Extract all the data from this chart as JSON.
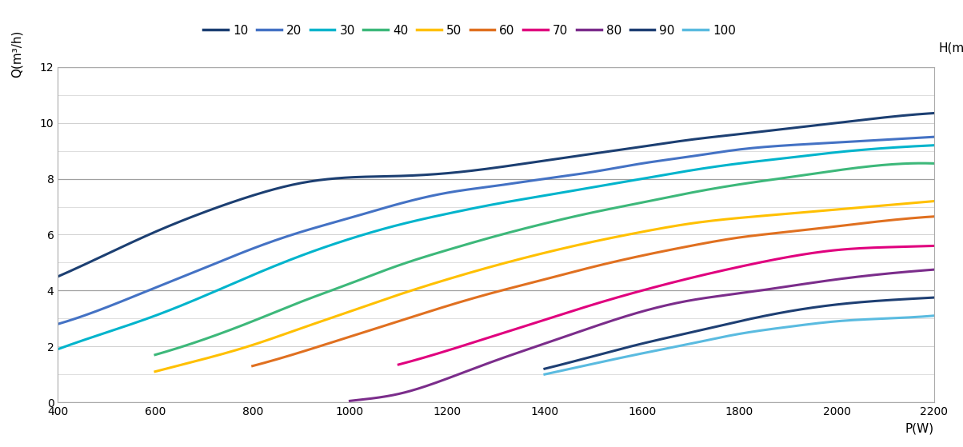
{
  "xlabel": "P(W)",
  "ylabel": "Q(m³/h)",
  "ylabel2": "H(m)",
  "xlim": [
    400,
    2200
  ],
  "ylim": [
    0,
    12
  ],
  "xticks": [
    400,
    600,
    800,
    1000,
    1200,
    1400,
    1600,
    1800,
    2000,
    2200
  ],
  "yticks": [
    0,
    2,
    4,
    6,
    8,
    10,
    12
  ],
  "series": [
    {
      "label": "10",
      "color": "#1c3f72",
      "x": [
        400,
        500,
        600,
        700,
        800,
        900,
        1000,
        1100,
        1200,
        1300,
        1400,
        1500,
        1600,
        1700,
        1800,
        1900,
        2000,
        2100,
        2200
      ],
      "y": [
        4.5,
        5.3,
        6.1,
        6.8,
        7.4,
        7.85,
        8.05,
        8.1,
        8.2,
        8.4,
        8.65,
        8.9,
        9.15,
        9.4,
        9.6,
        9.8,
        10.0,
        10.2,
        10.35
      ]
    },
    {
      "label": "20",
      "color": "#4472c4",
      "x": [
        400,
        500,
        600,
        700,
        800,
        900,
        1000,
        1100,
        1200,
        1300,
        1400,
        1500,
        1600,
        1700,
        1800,
        1900,
        2000,
        2100,
        2200
      ],
      "y": [
        2.8,
        3.4,
        4.1,
        4.8,
        5.5,
        6.1,
        6.6,
        7.1,
        7.5,
        7.75,
        8.0,
        8.25,
        8.55,
        8.8,
        9.05,
        9.2,
        9.3,
        9.4,
        9.5
      ]
    },
    {
      "label": "30",
      "color": "#00b4cc",
      "x": [
        400,
        500,
        600,
        700,
        800,
        900,
        1000,
        1100,
        1200,
        1300,
        1400,
        1500,
        1600,
        1700,
        1800,
        1900,
        2000,
        2100,
        2200
      ],
      "y": [
        1.9,
        2.5,
        3.1,
        3.8,
        4.55,
        5.25,
        5.85,
        6.35,
        6.75,
        7.1,
        7.4,
        7.7,
        8.0,
        8.3,
        8.55,
        8.75,
        8.95,
        9.1,
        9.2
      ]
    },
    {
      "label": "40",
      "color": "#3db87a",
      "x": [
        600,
        700,
        800,
        900,
        1000,
        1100,
        1200,
        1300,
        1400,
        1500,
        1600,
        1700,
        1800,
        1900,
        2000,
        2100,
        2200
      ],
      "y": [
        1.7,
        2.25,
        2.9,
        3.6,
        4.25,
        4.9,
        5.45,
        5.95,
        6.4,
        6.8,
        7.15,
        7.5,
        7.8,
        8.05,
        8.3,
        8.5,
        8.55
      ]
    },
    {
      "label": "50",
      "color": "#ffc000",
      "x": [
        600,
        700,
        800,
        900,
        1000,
        1100,
        1200,
        1300,
        1400,
        1500,
        1600,
        1700,
        1800,
        1900,
        2000,
        2100,
        2200
      ],
      "y": [
        1.1,
        1.55,
        2.05,
        2.65,
        3.25,
        3.85,
        4.4,
        4.9,
        5.35,
        5.75,
        6.1,
        6.4,
        6.6,
        6.75,
        6.9,
        7.05,
        7.2
      ]
    },
    {
      "label": "60",
      "color": "#e07020",
      "x": [
        800,
        900,
        1000,
        1100,
        1200,
        1300,
        1400,
        1500,
        1600,
        1700,
        1800,
        1900,
        2000,
        2100,
        2200
      ],
      "y": [
        1.3,
        1.8,
        2.35,
        2.9,
        3.45,
        3.95,
        4.4,
        4.85,
        5.25,
        5.6,
        5.9,
        6.1,
        6.3,
        6.5,
        6.65
      ]
    },
    {
      "label": "70",
      "color": "#e0007e",
      "x": [
        1100,
        1200,
        1300,
        1400,
        1500,
        1600,
        1700,
        1800,
        1900,
        2000,
        2100,
        2200
      ],
      "y": [
        1.35,
        1.85,
        2.4,
        2.95,
        3.5,
        4.0,
        4.45,
        4.85,
        5.2,
        5.45,
        5.55,
        5.6
      ]
    },
    {
      "label": "80",
      "color": "#7b2d8b",
      "x": [
        1000,
        1050,
        1100,
        1200,
        1300,
        1400,
        1500,
        1600,
        1700,
        1800,
        1900,
        2000,
        2100,
        2200
      ],
      "y": [
        0.05,
        0.15,
        0.3,
        0.85,
        1.5,
        2.1,
        2.7,
        3.25,
        3.65,
        3.9,
        4.15,
        4.4,
        4.6,
        4.75
      ]
    },
    {
      "label": "90",
      "color": "#1e3f73",
      "x": [
        1400,
        1500,
        1600,
        1700,
        1800,
        1900,
        2000,
        2100,
        2200
      ],
      "y": [
        1.2,
        1.65,
        2.1,
        2.5,
        2.9,
        3.25,
        3.5,
        3.65,
        3.75
      ]
    },
    {
      "label": "100",
      "color": "#5abbe0",
      "x": [
        1400,
        1500,
        1600,
        1700,
        1800,
        1900,
        2000,
        2100,
        2200
      ],
      "y": [
        1.0,
        1.38,
        1.75,
        2.1,
        2.45,
        2.7,
        2.9,
        3.0,
        3.1
      ]
    }
  ],
  "grid_color": "#d0d0d0",
  "grid_color_bold": "#a0a0a0",
  "bg_color": "#ffffff",
  "line_width": 2.2
}
